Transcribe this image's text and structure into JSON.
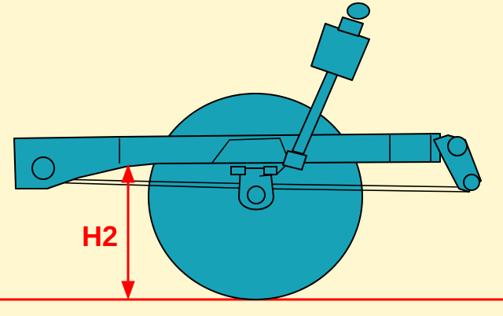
{
  "diagram": {
    "dimension_label": "H2",
    "colors": {
      "background": "#fff7cf",
      "part_fill": "#17a2b8",
      "outline": "#000000",
      "dimension": "#ff0000"
    }
  }
}
